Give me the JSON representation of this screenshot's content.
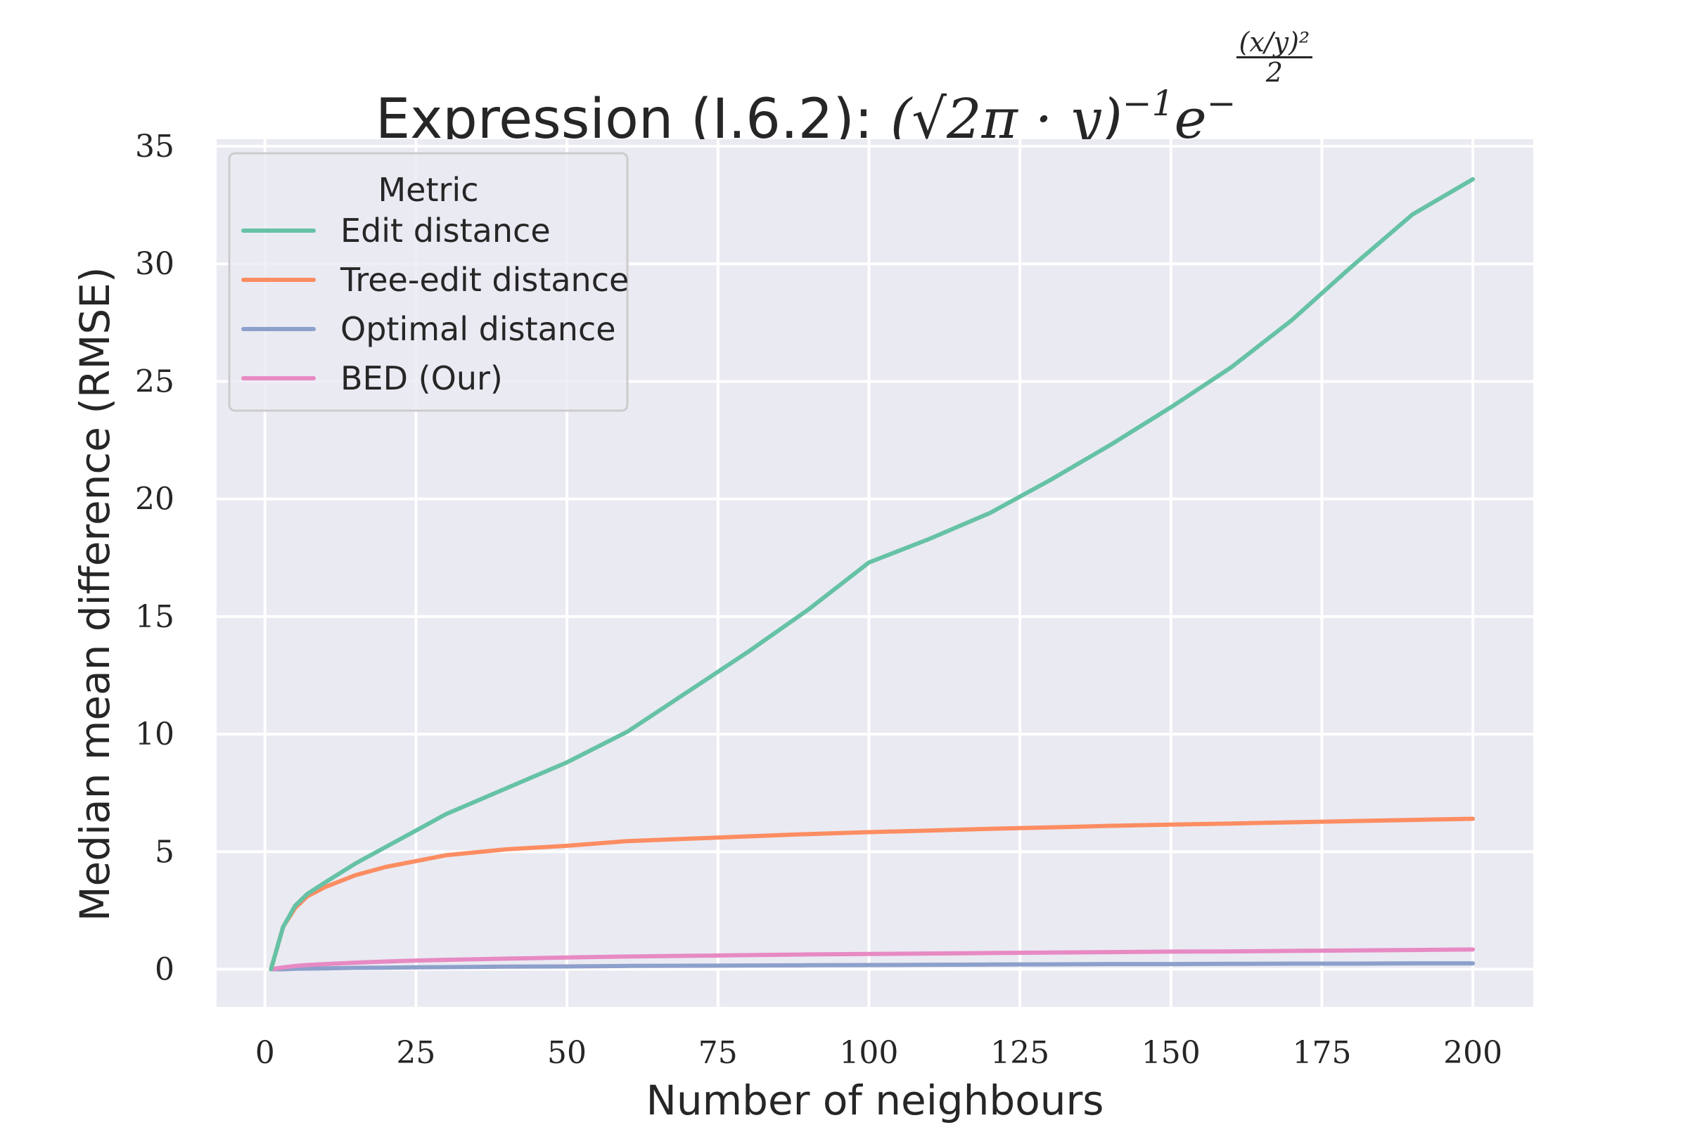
{
  "chart_data": {
    "type": "line",
    "title": "Expression (I.6.2):",
    "title_formula": {
      "base": "(√2π · y)",
      "exp1": "−1",
      "e": "e",
      "exp_sign": "−",
      "exp_num": "(x/y)²",
      "exp_den": "2"
    },
    "xlabel": "Number of neighbours",
    "ylabel": "Median mean difference (RMSE)",
    "xlim": [
      -8,
      210
    ],
    "ylim": [
      -1.6,
      35.3
    ],
    "xticks": [
      0,
      25,
      50,
      75,
      100,
      125,
      150,
      175,
      200
    ],
    "yticks": [
      0,
      5,
      10,
      15,
      20,
      25,
      30,
      35
    ],
    "grid": true,
    "legend": {
      "title": "Metric",
      "placement": "top-left"
    },
    "colors": {
      "plot_background": "#eaeaf2",
      "grid": "#ffffff"
    },
    "x": [
      1,
      3,
      5,
      7,
      10,
      15,
      20,
      25,
      30,
      40,
      50,
      60,
      70,
      80,
      90,
      100,
      110,
      120,
      130,
      140,
      150,
      160,
      170,
      180,
      190,
      200
    ],
    "series": [
      {
        "name": "Edit distance",
        "color": "#66c2a5",
        "values": [
          0.0,
          1.8,
          2.7,
          3.2,
          3.7,
          4.5,
          5.2,
          5.9,
          6.6,
          7.7,
          8.8,
          10.1,
          11.8,
          13.5,
          15.3,
          17.3,
          18.3,
          19.4,
          20.8,
          22.3,
          23.9,
          25.6,
          27.6,
          29.9,
          32.1,
          33.6
        ]
      },
      {
        "name": "Tree-edit distance",
        "color": "#fc8d62",
        "values": [
          0.0,
          1.8,
          2.6,
          3.1,
          3.5,
          4.0,
          4.35,
          4.6,
          4.85,
          5.1,
          5.25,
          5.45,
          5.55,
          5.65,
          5.75,
          5.83,
          5.9,
          5.97,
          6.03,
          6.1,
          6.15,
          6.2,
          6.25,
          6.3,
          6.35,
          6.4
        ]
      },
      {
        "name": "Optimal distance",
        "color": "#8da0cb",
        "values": [
          0.0,
          0.0,
          0.02,
          0.03,
          0.04,
          0.06,
          0.07,
          0.08,
          0.09,
          0.11,
          0.12,
          0.14,
          0.15,
          0.16,
          0.17,
          0.18,
          0.19,
          0.2,
          0.21,
          0.22,
          0.22,
          0.23,
          0.24,
          0.24,
          0.25,
          0.25
        ]
      },
      {
        "name": "BED (Our)",
        "color": "#e78ac3",
        "values": [
          0.0,
          0.08,
          0.14,
          0.18,
          0.22,
          0.28,
          0.33,
          0.37,
          0.4,
          0.45,
          0.5,
          0.54,
          0.57,
          0.6,
          0.63,
          0.65,
          0.67,
          0.69,
          0.71,
          0.73,
          0.75,
          0.76,
          0.78,
          0.8,
          0.82,
          0.84
        ]
      }
    ]
  }
}
